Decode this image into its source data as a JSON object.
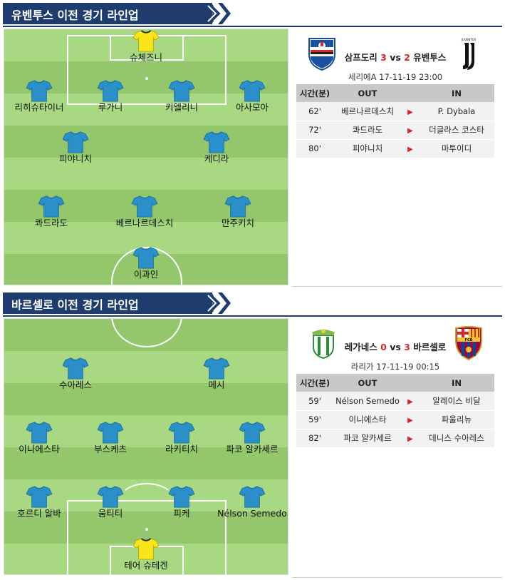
{
  "colors": {
    "title_bg": "#1e3d6e",
    "score_red": "#d8282f",
    "shirt_field": "#2b90c9",
    "shirt_keeper": "#f7e419"
  },
  "sections": [
    {
      "title": "유벤투스 이전 경기 라인업",
      "players": [
        "슈체즈니",
        "리히슈타이너",
        "루가니",
        "키엘리니",
        "아사모아",
        "피야니치",
        "케디라",
        "콰드라도",
        "베르나르데스치",
        "만주키치",
        "이과인"
      ],
      "match": {
        "home": "삼프도리",
        "home_score": "3",
        "vs": "vs",
        "away_score": "2",
        "away": "유벤투스",
        "league_date": "세리에A 17-11-19 23:00",
        "home_logo_icon": "sampdoria-crest-icon",
        "away_logo_icon": "juventus-crest-icon",
        "away_logo_text": "JUVENTUS"
      },
      "subs_headers": [
        "시간(분)",
        "OUT",
        "IN"
      ],
      "subs": [
        {
          "min": "62'",
          "out": "베르나르데스치",
          "in": "P. Dybala"
        },
        {
          "min": "72'",
          "out": "콰드라도",
          "in": "더글라스 코스타"
        },
        {
          "min": "80'",
          "out": "피야니치",
          "in": "마투이디"
        }
      ]
    },
    {
      "title": "바르셀로 이전 경기 라인업",
      "players": [
        "수아레스",
        "메시",
        "이니에스타",
        "부스케츠",
        "라키티치",
        "파코 알카세르",
        "호르디 알바",
        "움티티",
        "피케",
        "Nélson Semedo",
        "테어 슈테겐"
      ],
      "match": {
        "home": "레가네스",
        "home_score": "0",
        "vs": "vs",
        "away_score": "3",
        "away": "바르셀로",
        "league_date": "라리가 17-11-19 00:15",
        "home_logo_icon": "leganes-crest-icon",
        "away_logo_icon": "barcelona-crest-icon",
        "away_logo_text": "FCB"
      },
      "subs_headers": [
        "시간(분)",
        "OUT",
        "IN"
      ],
      "subs": [
        {
          "min": "59'",
          "out": "Nélson Semedo",
          "in": "알레이스 비달"
        },
        {
          "min": "59'",
          "out": "이니에스타",
          "in": "파울리뉴"
        },
        {
          "min": "82'",
          "out": "파코 알카세르",
          "in": "데니스 수아레스"
        }
      ]
    }
  ]
}
